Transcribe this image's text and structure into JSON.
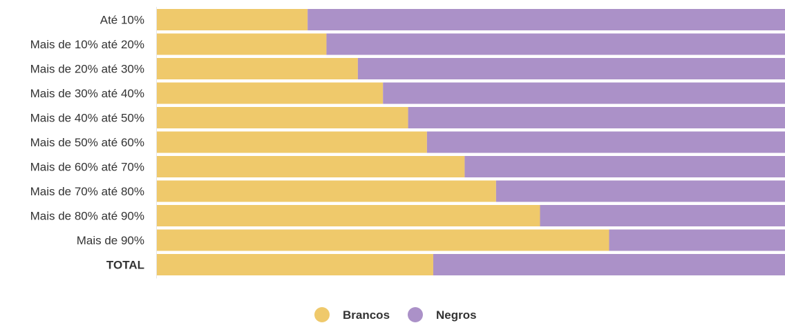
{
  "chart_data": {
    "type": "bar",
    "orientation": "horizontal",
    "stacked": true,
    "normalized": true,
    "categories": [
      "Até 10%",
      "Mais de 10% até 20%",
      "Mais de 20% até 30%",
      "Mais de 30% até 40%",
      "Mais de 40% até 50%",
      "Mais de 50% até 60%",
      "Mais de 60% até 70%",
      "Mais de 70% até 80%",
      "Mais de 80% até 90%",
      "Mais de 90%",
      "TOTAL"
    ],
    "series": [
      {
        "name": "Brancos",
        "color": "#EFC96B",
        "values": [
          24,
          27,
          32,
          36,
          40,
          43,
          49,
          54,
          61,
          72,
          44
        ]
      },
      {
        "name": "Negros",
        "color": "#AB91C8",
        "values": [
          76,
          73,
          68,
          64,
          60,
          57,
          51,
          46,
          39,
          28,
          56
        ]
      }
    ],
    "xlim": [
      0,
      100
    ],
    "grid": false,
    "legend_position": "bottom-center"
  }
}
